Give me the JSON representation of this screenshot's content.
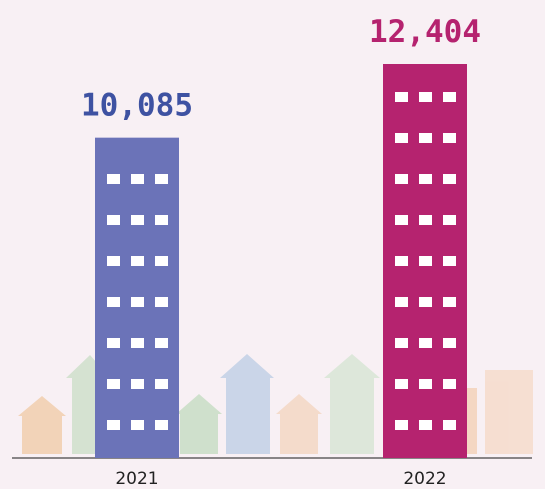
{
  "chart_data": {
    "type": "bar",
    "categories": [
      "2021",
      "2022"
    ],
    "values": [
      10085,
      12404
    ],
    "value_labels": [
      "10,085",
      "12,404"
    ],
    "colors": [
      "#6b73b8",
      "#b5236f"
    ],
    "label_colors": [
      "#3e52a2",
      "#b5236f"
    ]
  }
}
